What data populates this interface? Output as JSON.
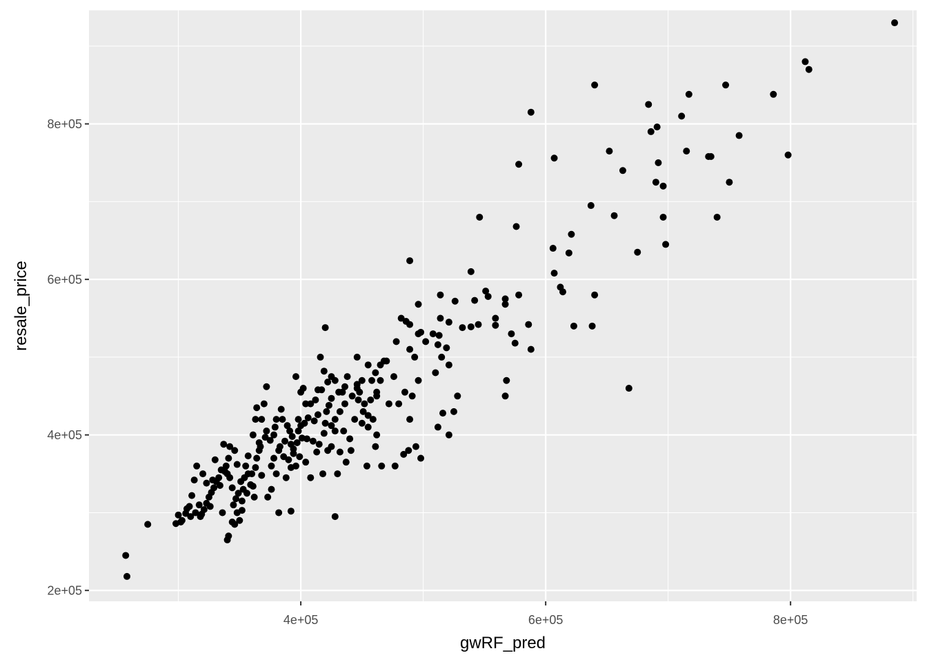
{
  "chart_data": {
    "type": "scatter",
    "title": "",
    "xlabel": "gwRF_pred",
    "ylabel": "resale_price",
    "xlim": [
      227000,
      903000
    ],
    "ylim": [
      186000,
      946000
    ],
    "x_ticks": [
      400000,
      600000,
      800000
    ],
    "x_tick_labels": [
      "4e+05",
      "6e+05",
      "8e+05"
    ],
    "x_minor_ticks": [
      300000,
      500000,
      700000,
      900000
    ],
    "y_ticks": [
      200000,
      400000,
      600000,
      800000
    ],
    "y_tick_labels": [
      "2e+05",
      "4e+05",
      "6e+05",
      "8e+05"
    ],
    "y_minor_ticks": [
      300000,
      500000,
      700000,
      900000
    ],
    "grid": true,
    "legend": "none",
    "colors": {
      "panel": "#ebebeb",
      "grid": "#ffffff",
      "point": "#000000",
      "tick_label": "#4d4d4d",
      "tick_mark": "#333333"
    },
    "points": [
      [
        885000,
        930000
      ],
      [
        812000,
        880000
      ],
      [
        815000,
        870000
      ],
      [
        786000,
        838000
      ],
      [
        798000,
        760000
      ],
      [
        758000,
        785000
      ],
      [
        747000,
        850000
      ],
      [
        750000,
        725000
      ],
      [
        740000,
        680000
      ],
      [
        717000,
        838000
      ],
      [
        711000,
        810000
      ],
      [
        715000,
        765000
      ],
      [
        733000,
        758000
      ],
      [
        735000,
        758000
      ],
      [
        691000,
        796000
      ],
      [
        686000,
        790000
      ],
      [
        684000,
        825000
      ],
      [
        692000,
        750000
      ],
      [
        690000,
        725000
      ],
      [
        696000,
        720000
      ],
      [
        696000,
        680000
      ],
      [
        698000,
        645000
      ],
      [
        675000,
        635000
      ],
      [
        663000,
        740000
      ],
      [
        656000,
        682000
      ],
      [
        652000,
        765000
      ],
      [
        640000,
        850000
      ],
      [
        637000,
        695000
      ],
      [
        640000,
        580000
      ],
      [
        638000,
        540000
      ],
      [
        668000,
        460000
      ],
      [
        621000,
        658000
      ],
      [
        619000,
        634000
      ],
      [
        623000,
        540000
      ],
      [
        607000,
        756000
      ],
      [
        606000,
        640000
      ],
      [
        607000,
        608000
      ],
      [
        612000,
        590000
      ],
      [
        614000,
        584000
      ],
      [
        588000,
        815000
      ],
      [
        578000,
        748000
      ],
      [
        576000,
        668000
      ],
      [
        578000,
        580000
      ],
      [
        586000,
        542000
      ],
      [
        588000,
        510000
      ],
      [
        575000,
        518000
      ],
      [
        572000,
        530000
      ],
      [
        567000,
        575000
      ],
      [
        567000,
        568000
      ],
      [
        559000,
        550000
      ],
      [
        559000,
        541000
      ],
      [
        568000,
        470000
      ],
      [
        567000,
        450000
      ],
      [
        546000,
        680000
      ],
      [
        539000,
        610000
      ],
      [
        551000,
        585000
      ],
      [
        553000,
        578000
      ],
      [
        542000,
        573000
      ],
      [
        545000,
        542000
      ],
      [
        539000,
        539000
      ],
      [
        532000,
        538000
      ],
      [
        526000,
        572000
      ],
      [
        521000,
        545000
      ],
      [
        514000,
        580000
      ],
      [
        514000,
        550000
      ],
      [
        508000,
        530000
      ],
      [
        513000,
        528000
      ],
      [
        512000,
        516000
      ],
      [
        519000,
        512000
      ],
      [
        515000,
        500000
      ],
      [
        521000,
        490000
      ],
      [
        510000,
        480000
      ],
      [
        528000,
        450000
      ],
      [
        525000,
        430000
      ],
      [
        516000,
        428000
      ],
      [
        512000,
        410000
      ],
      [
        521000,
        400000
      ],
      [
        489000,
        624000
      ],
      [
        496000,
        568000
      ],
      [
        486000,
        546000
      ],
      [
        489000,
        542000
      ],
      [
        482000,
        550000
      ],
      [
        498000,
        532000
      ],
      [
        496000,
        530000
      ],
      [
        502000,
        520000
      ],
      [
        489000,
        510000
      ],
      [
        478000,
        520000
      ],
      [
        493000,
        500000
      ],
      [
        496000,
        470000
      ],
      [
        498000,
        370000
      ],
      [
        494000,
        385000
      ],
      [
        488000,
        380000
      ],
      [
        480000,
        440000
      ],
      [
        485000,
        455000
      ],
      [
        489000,
        420000
      ],
      [
        491000,
        450000
      ],
      [
        476000,
        475000
      ],
      [
        484000,
        375000
      ],
      [
        477000,
        360000
      ],
      [
        470000,
        495000
      ],
      [
        465000,
        490000
      ],
      [
        465000,
        470000
      ],
      [
        461000,
        480000
      ],
      [
        458000,
        470000
      ],
      [
        462000,
        455000
      ],
      [
        462000,
        450000
      ],
      [
        457000,
        445000
      ],
      [
        459000,
        420000
      ],
      [
        462000,
        400000
      ],
      [
        461000,
        385000
      ],
      [
        466000,
        360000
      ],
      [
        454000,
        360000
      ],
      [
        452000,
        440000
      ],
      [
        451000,
        430000
      ],
      [
        450000,
        415000
      ],
      [
        455000,
        410000
      ],
      [
        455000,
        425000
      ],
      [
        446000,
        500000
      ],
      [
        446000,
        465000
      ],
      [
        446000,
        460000
      ],
      [
        448000,
        455000
      ],
      [
        447000,
        445000
      ],
      [
        442000,
        450000
      ],
      [
        438000,
        475000
      ],
      [
        436000,
        462000
      ],
      [
        434000,
        455000
      ],
      [
        436000,
        440000
      ],
      [
        432000,
        430000
      ],
      [
        428000,
        420000
      ],
      [
        428000,
        405000
      ],
      [
        425000,
        412000
      ],
      [
        423000,
        438000
      ],
      [
        420000,
        538000
      ],
      [
        419000,
        482000
      ],
      [
        416000,
        500000
      ],
      [
        425000,
        475000
      ],
      [
        428000,
        470000
      ],
      [
        422000,
        468000
      ],
      [
        425000,
        447000
      ],
      [
        421000,
        430000
      ],
      [
        420000,
        415000
      ],
      [
        417000,
        458000
      ],
      [
        414000,
        458000
      ],
      [
        412000,
        445000
      ],
      [
        414000,
        426000
      ],
      [
        411000,
        418000
      ],
      [
        406000,
        422000
      ],
      [
        403000,
        415000
      ],
      [
        404000,
        440000
      ],
      [
        408000,
        440000
      ],
      [
        400000,
        455000
      ],
      [
        402000,
        460000
      ],
      [
        396000,
        475000
      ],
      [
        398000,
        405000
      ],
      [
        400000,
        412000
      ],
      [
        401000,
        396000
      ],
      [
        397000,
        390000
      ],
      [
        394000,
        382000
      ],
      [
        393000,
        398000
      ],
      [
        391000,
        405000
      ],
      [
        389000,
        412000
      ],
      [
        390000,
        368000
      ],
      [
        392000,
        358000
      ],
      [
        388000,
        345000
      ],
      [
        392000,
        302000
      ],
      [
        385000,
        420000
      ],
      [
        384000,
        433000
      ],
      [
        380000,
        420000
      ],
      [
        378000,
        400000
      ],
      [
        375000,
        393000
      ],
      [
        382000,
        380000
      ],
      [
        378000,
        370000
      ],
      [
        376000,
        360000
      ],
      [
        380000,
        350000
      ],
      [
        376000,
        330000
      ],
      [
        373000,
        320000
      ],
      [
        372000,
        405000
      ],
      [
        368000,
        420000
      ],
      [
        370000,
        440000
      ],
      [
        372000,
        462000
      ],
      [
        364000,
        435000
      ],
      [
        363000,
        420000
      ],
      [
        361000,
        400000
      ],
      [
        366000,
        390000
      ],
      [
        366000,
        380000
      ],
      [
        364000,
        370000
      ],
      [
        363000,
        358000
      ],
      [
        360000,
        350000
      ],
      [
        361000,
        334000
      ],
      [
        362000,
        320000
      ],
      [
        357000,
        350000
      ],
      [
        355000,
        360000
      ],
      [
        354000,
        345000
      ],
      [
        351000,
        340000
      ],
      [
        353000,
        330000
      ],
      [
        349000,
        325000
      ],
      [
        347000,
        318000
      ],
      [
        345000,
        310000
      ],
      [
        348000,
        300000
      ],
      [
        350000,
        290000
      ],
      [
        352000,
        303000
      ],
      [
        344000,
        332000
      ],
      [
        342000,
        345000
      ],
      [
        340000,
        350000
      ],
      [
        339000,
        360000
      ],
      [
        341000,
        370000
      ],
      [
        342000,
        385000
      ],
      [
        346000,
        380000
      ],
      [
        337000,
        388000
      ],
      [
        335000,
        355000
      ],
      [
        333000,
        345000
      ],
      [
        331000,
        340000
      ],
      [
        329000,
        332000
      ],
      [
        327000,
        326000
      ],
      [
        325000,
        320000
      ],
      [
        323000,
        312000
      ],
      [
        321000,
        304000
      ],
      [
        319000,
        298000
      ],
      [
        318000,
        295000
      ],
      [
        323000,
        338000
      ],
      [
        320000,
        350000
      ],
      [
        315000,
        360000
      ],
      [
        313000,
        342000
      ],
      [
        311000,
        322000
      ],
      [
        309000,
        308000
      ],
      [
        307000,
        305000
      ],
      [
        303000,
        290000
      ],
      [
        300000,
        297000
      ],
      [
        298000,
        286000
      ],
      [
        330000,
        368000
      ],
      [
        336000,
        300000
      ],
      [
        340000,
        265000
      ],
      [
        341000,
        270000
      ],
      [
        344000,
        288000
      ],
      [
        346000,
        285000
      ],
      [
        382000,
        300000
      ],
      [
        428000,
        295000
      ],
      [
        422000,
        380000
      ],
      [
        425000,
        385000
      ],
      [
        430000,
        350000
      ],
      [
        432000,
        378000
      ],
      [
        437000,
        365000
      ],
      [
        441000,
        380000
      ],
      [
        275000,
        285000
      ],
      [
        257000,
        245000
      ],
      [
        258000,
        218000
      ],
      [
        440000,
        395000
      ],
      [
        435000,
        405000
      ],
      [
        444000,
        420000
      ],
      [
        418000,
        350000
      ],
      [
        408000,
        345000
      ],
      [
        413000,
        378000
      ],
      [
        404000,
        365000
      ],
      [
        396000,
        360000
      ],
      [
        399000,
        372000
      ],
      [
        386000,
        372000
      ],
      [
        383000,
        385000
      ],
      [
        387000,
        392000
      ],
      [
        392000,
        388000
      ],
      [
        394000,
        376000
      ],
      [
        368000,
        348000
      ],
      [
        359000,
        336000
      ],
      [
        356000,
        325000
      ],
      [
        352000,
        315000
      ],
      [
        334000,
        335000
      ],
      [
        326000,
        308000
      ],
      [
        317000,
        310000
      ],
      [
        314000,
        300000
      ],
      [
        310000,
        295000
      ],
      [
        306000,
        299000
      ],
      [
        302000,
        288000
      ],
      [
        431000,
        455000
      ],
      [
        450000,
        470000
      ],
      [
        455000,
        490000
      ],
      [
        468000,
        495000
      ],
      [
        472000,
        440000
      ],
      [
        405000,
        395000
      ],
      [
        410000,
        392000
      ],
      [
        415000,
        388000
      ],
      [
        419000,
        402000
      ],
      [
        398000,
        420000
      ],
      [
        379000,
        410000
      ],
      [
        371000,
        397000
      ],
      [
        367000,
        385000
      ],
      [
        357000,
        373000
      ],
      [
        348000,
        362000
      ],
      [
        338000,
        353000
      ],
      [
        328000,
        342000
      ]
    ]
  }
}
